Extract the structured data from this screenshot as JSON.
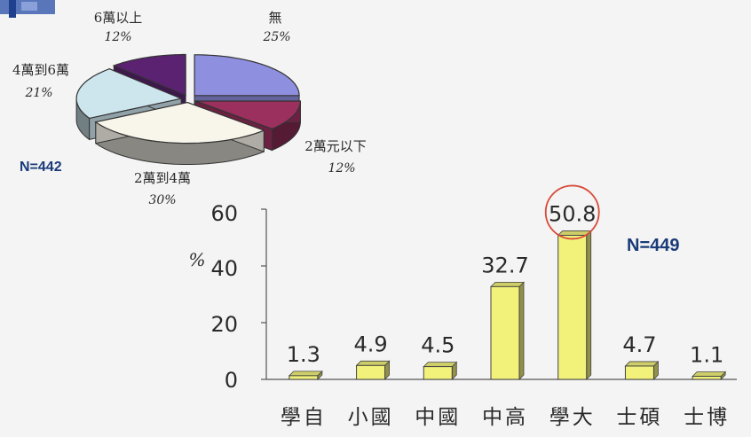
{
  "chart_data": [
    {
      "type": "pie",
      "n_label": "N=442",
      "slices": [
        {
          "name": "無",
          "pct_text": "25%",
          "value": 25,
          "color": "#8f8fe0"
        },
        {
          "name": "2萬元以下",
          "pct_text": "12%",
          "value": 12,
          "color": "#9b2f5e"
        },
        {
          "name": "2萬到4萬",
          "pct_text": "30%",
          "value": 30,
          "color": "#f8f5ea"
        },
        {
          "name": "4萬到6萬",
          "pct_text": "21%",
          "value": 21,
          "color": "#cde6ee"
        },
        {
          "name": "6萬以上",
          "pct_text": "12%",
          "value": 12,
          "color": "#5a2270"
        }
      ]
    },
    {
      "type": "bar",
      "n_label": "N=449",
      "ylabel": "%",
      "ylim": [
        0,
        60
      ],
      "yticks": [
        "0",
        "20",
        "40",
        "60"
      ],
      "categories": [
        "學自",
        "小國",
        "中國",
        "中高",
        "學大",
        "士碩",
        "士博"
      ],
      "values": [
        1.3,
        4.9,
        4.5,
        32.7,
        50.8,
        4.7,
        1.1
      ],
      "value_labels": [
        "1.3",
        "4.9",
        "4.5",
        "32.7",
        "50.8",
        "4.7",
        "1.1"
      ],
      "highlight_index": 4,
      "bar_color": "#f2f27a",
      "highlight_color": "#d94a3a"
    }
  ]
}
